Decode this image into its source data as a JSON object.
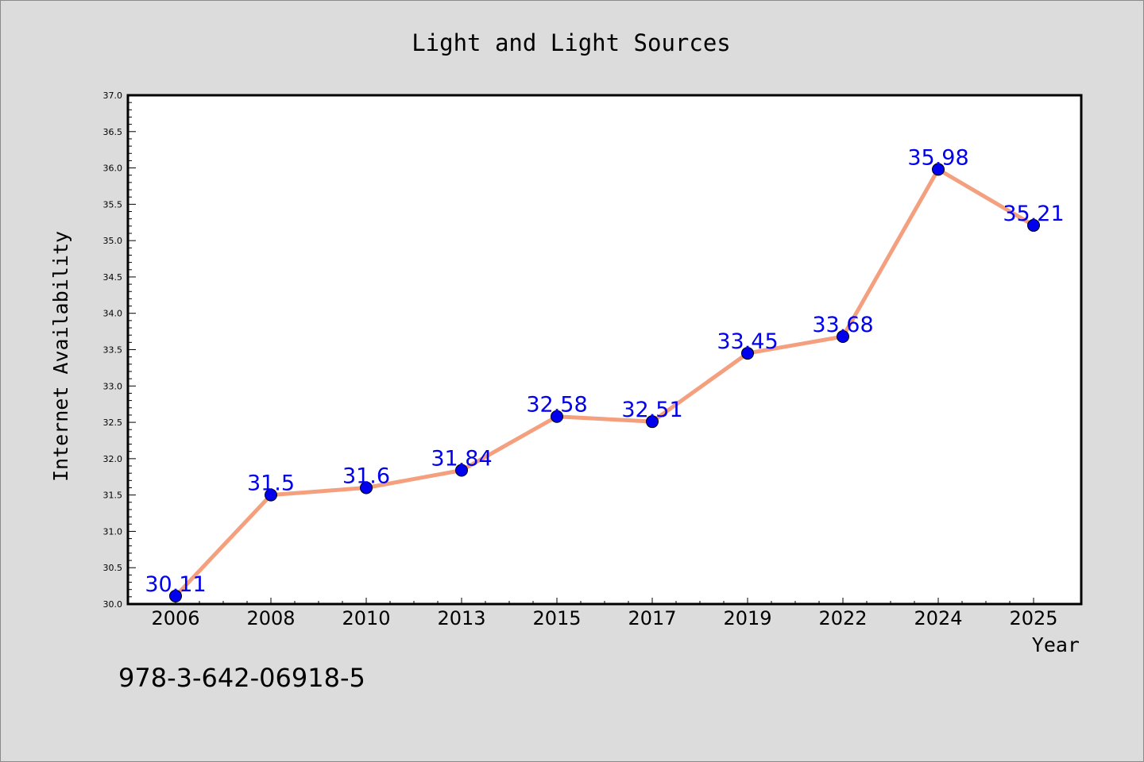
{
  "chart_data": {
    "type": "line",
    "title": "Light and Light Sources",
    "xlabel": "Year",
    "ylabel": "Internet Availability",
    "categories": [
      "2006",
      "2008",
      "2010",
      "2013",
      "2015",
      "2017",
      "2019",
      "2022",
      "2024",
      "2025"
    ],
    "series": [
      {
        "values": [
          30.11,
          31.5,
          31.6,
          31.84,
          32.58,
          32.51,
          33.45,
          33.68,
          35.98,
          35.21
        ],
        "data_labels": [
          "30.11",
          "31.5",
          "31.6",
          "31.84",
          "32.58",
          "32.51",
          "33.45",
          "33.68",
          "35.98",
          "35.21"
        ],
        "line_color": "#f4a07e",
        "marker_color": "#0000ee",
        "label_color": "#0000ee"
      }
    ],
    "ylim": [
      30.0,
      37.0
    ],
    "yticks": [
      "30.0",
      "30.5",
      "31.0",
      "31.5",
      "32.0",
      "32.5",
      "33.0",
      "33.5",
      "34.0",
      "34.5",
      "35.0",
      "35.5",
      "36.0",
      "36.5",
      "37.0"
    ],
    "grid": false,
    "legend": "none"
  },
  "footer_text": "978-3-642-06918-5",
  "colors": {
    "background": "#dcdcdc",
    "plot_background": "#ffffff",
    "axis": "#000000"
  }
}
